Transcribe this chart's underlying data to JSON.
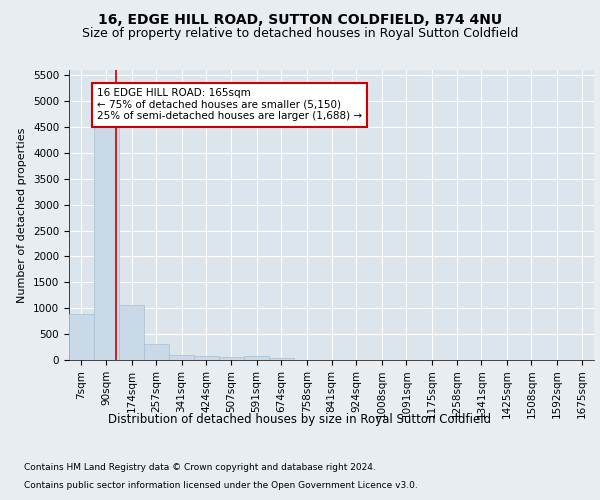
{
  "title1": "16, EDGE HILL ROAD, SUTTON COLDFIELD, B74 4NU",
  "title2": "Size of property relative to detached houses in Royal Sutton Coldfield",
  "xlabel": "Distribution of detached houses by size in Royal Sutton Coldfield",
  "ylabel": "Number of detached properties",
  "footnote1": "Contains HM Land Registry data © Crown copyright and database right 2024.",
  "footnote2": "Contains public sector information licensed under the Open Government Licence v3.0.",
  "annotation_line1": "16 EDGE HILL ROAD: 165sqm",
  "annotation_line2": "← 75% of detached houses are smaller (5,150)",
  "annotation_line3": "25% of semi-detached houses are larger (1,688) →",
  "bar_color": "#c9d9e8",
  "bar_edge_color": "#a8bfcf",
  "red_line_x": 165,
  "categories": [
    "7sqm",
    "90sqm",
    "174sqm",
    "257sqm",
    "341sqm",
    "424sqm",
    "507sqm",
    "591sqm",
    "674sqm",
    "758sqm",
    "841sqm",
    "924sqm",
    "1008sqm",
    "1091sqm",
    "1175sqm",
    "1258sqm",
    "1341sqm",
    "1425sqm",
    "1508sqm",
    "1592sqm",
    "1675sqm"
  ],
  "bin_starts": [
    7,
    90,
    174,
    257,
    341,
    424,
    507,
    591,
    674,
    758,
    841,
    924,
    1008,
    1091,
    1175,
    1258,
    1341,
    1425,
    1508,
    1592,
    1675
  ],
  "bin_width": 83,
  "values": [
    880,
    4560,
    1070,
    300,
    95,
    70,
    55,
    70,
    30,
    0,
    0,
    0,
    0,
    0,
    0,
    0,
    0,
    0,
    0,
    0,
    0
  ],
  "ylim": [
    0,
    5600
  ],
  "yticks": [
    0,
    500,
    1000,
    1500,
    2000,
    2500,
    3000,
    3500,
    4000,
    4500,
    5000,
    5500
  ],
  "background_color": "#e8edf2",
  "plot_bg_color": "#dce4ec",
  "grid_color": "#ffffff",
  "title1_fontsize": 10,
  "title2_fontsize": 9,
  "ylabel_fontsize": 8,
  "xlabel_fontsize": 8.5,
  "tick_fontsize": 7.5,
  "annotation_fontsize": 7.5,
  "footnote_fontsize": 6.5,
  "annotation_box_color": "#ffffff",
  "annotation_box_edge": "#cc0000",
  "red_line_color": "#cc0000",
  "figsize": [
    6.0,
    5.0
  ],
  "dpi": 100
}
